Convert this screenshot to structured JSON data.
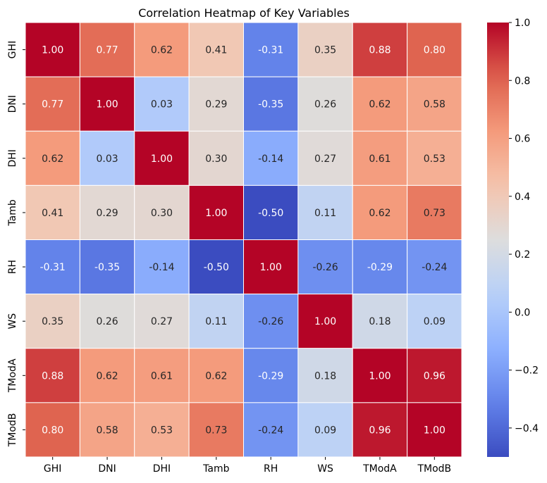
{
  "chart_data": {
    "type": "heatmap",
    "title": "Correlation Heatmap of Key Variables",
    "xlabel": "",
    "ylabel": "",
    "x_labels": [
      "GHI",
      "DNI",
      "DHI",
      "Tamb",
      "RH",
      "WS",
      "TModA",
      "TModB"
    ],
    "y_labels": [
      "GHI",
      "DNI",
      "DHI",
      "Tamb",
      "RH",
      "WS",
      "TModA",
      "TModB"
    ],
    "matrix": [
      [
        1.0,
        0.77,
        0.62,
        0.41,
        -0.31,
        0.35,
        0.88,
        0.8
      ],
      [
        0.77,
        1.0,
        0.03,
        0.29,
        -0.35,
        0.26,
        0.62,
        0.58
      ],
      [
        0.62,
        0.03,
        1.0,
        0.3,
        -0.14,
        0.27,
        0.61,
        0.53
      ],
      [
        0.41,
        0.29,
        0.3,
        1.0,
        -0.5,
        0.11,
        0.62,
        0.73
      ],
      [
        -0.31,
        -0.35,
        -0.14,
        -0.5,
        1.0,
        -0.26,
        -0.29,
        -0.24
      ],
      [
        0.35,
        0.26,
        0.27,
        0.11,
        -0.26,
        1.0,
        0.18,
        0.09
      ],
      [
        0.88,
        0.62,
        0.61,
        0.62,
        -0.29,
        0.18,
        1.0,
        0.96
      ],
      [
        0.8,
        0.58,
        0.53,
        0.73,
        -0.24,
        0.09,
        0.96,
        1.0
      ]
    ],
    "colormap": "coolwarm",
    "vmin": -0.5,
    "vmax": 1.0,
    "colorbar_ticks": [
      1.0,
      0.8,
      0.6,
      0.4,
      0.2,
      0.0,
      -0.2,
      -0.4
    ],
    "colorbar_tick_labels": [
      "1.0",
      "0.8",
      "0.6",
      "0.4",
      "0.2",
      "0.0",
      "−0.2",
      "−0.4"
    ],
    "annotation_format": "2dp"
  }
}
